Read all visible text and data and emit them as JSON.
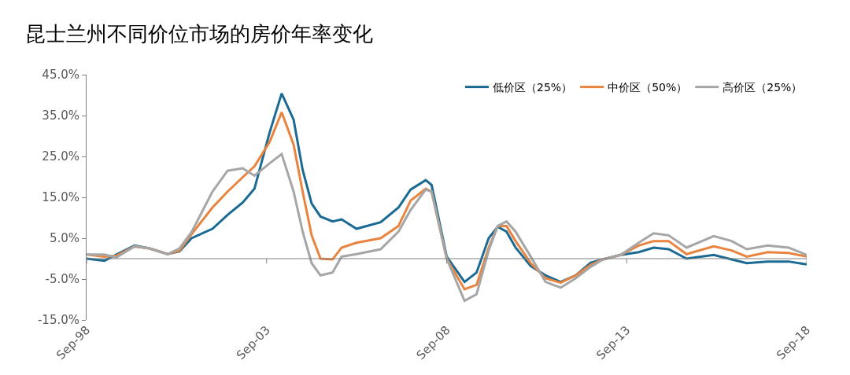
{
  "chart_data": {
    "type": "line",
    "title": "昆士兰州不同价位市场的房价年率变化",
    "x": [
      "1998-09",
      "1999-03",
      "1999-07",
      "2000-01",
      "2000-06",
      "2000-12",
      "2001-04",
      "2001-08",
      "2002-03",
      "2002-08",
      "2003-01",
      "2003-05",
      "2003-10",
      "2004-02",
      "2004-06",
      "2004-09",
      "2004-12",
      "2005-03",
      "2005-07",
      "2005-10",
      "2006-03",
      "2006-11",
      "2007-05",
      "2007-09",
      "2008-02",
      "2008-04",
      "2008-09",
      "2009-03",
      "2009-07",
      "2009-11",
      "2010-02",
      "2010-05",
      "2010-08",
      "2011-01",
      "2011-06",
      "2011-11",
      "2012-04",
      "2012-09",
      "2013-01",
      "2013-07",
      "2014-01",
      "2014-06",
      "2014-11",
      "2015-05",
      "2016-02",
      "2016-08",
      "2017-01",
      "2017-08",
      "2018-03",
      "2018-09"
    ],
    "series": [
      {
        "name": "低价区（25%）",
        "color": "#1b6a94",
        "values": [
          0,
          -0.5,
          1,
          3.2,
          2.5,
          1.1,
          1.8,
          5,
          7.3,
          10.7,
          13.7,
          17.1,
          30.8,
          40.4,
          34,
          21.7,
          13.5,
          10.3,
          9.1,
          9.6,
          7.3,
          8.9,
          12.5,
          16.9,
          19.2,
          18,
          0.5,
          -5.7,
          -3.4,
          5,
          7.8,
          6.6,
          2.7,
          -1.8,
          -4.1,
          -5.7,
          -4.1,
          -1,
          -0.2,
          0.9,
          1.6,
          2.7,
          2.3,
          0,
          0.9,
          -0.2,
          -1.1,
          -0.7,
          -0.7,
          -1.4
        ]
      },
      {
        "name": "中价区（50%）",
        "color": "#e8843f",
        "values": [
          1,
          0.5,
          0.7,
          3,
          2.5,
          1.1,
          2,
          6,
          12.5,
          16.4,
          19.9,
          22.6,
          28.5,
          35.8,
          27.9,
          16.4,
          5.7,
          0,
          -0.2,
          2.7,
          3.9,
          5,
          8,
          14.2,
          17.1,
          16.4,
          0,
          -7.5,
          -6.4,
          2.7,
          8,
          8,
          4.3,
          -1.1,
          -4.8,
          -5.9,
          -4.1,
          -1.5,
          -0.2,
          0.9,
          3.2,
          4.3,
          4.3,
          1.1,
          3,
          2,
          0.5,
          1.6,
          1.4,
          0.5
        ]
      },
      {
        "name": "高价区（25%）",
        "color": "#a6a6a6",
        "values": [
          1,
          1,
          0.3,
          3,
          2.5,
          1.1,
          2.5,
          6.5,
          16.4,
          21.5,
          22.1,
          20.3,
          23.3,
          25.6,
          16.4,
          6.6,
          -1.1,
          -4.1,
          -3.4,
          0.5,
          1.1,
          2.3,
          6.6,
          11.9,
          16.9,
          16.4,
          0,
          -10.3,
          -8.7,
          2,
          8,
          9.1,
          6.6,
          0.5,
          -5.7,
          -7.1,
          -4.8,
          -2,
          -0.2,
          0.9,
          3.9,
          6.2,
          5.7,
          2.7,
          5.5,
          4.3,
          2.3,
          3.2,
          2.7,
          0.9
        ]
      }
    ],
    "xlim": [
      "1998-09",
      "2018-09"
    ],
    "xticks": [
      {
        "value": "1998-09",
        "label": "Sep-98"
      },
      {
        "value": "2003-09",
        "label": "Sep-03"
      },
      {
        "value": "2008-09",
        "label": "Sep-08"
      },
      {
        "value": "2013-09",
        "label": "Sep-13"
      },
      {
        "value": "2018-09",
        "label": "Sep-18"
      }
    ],
    "ylim": [
      -15,
      45
    ],
    "yticks": [
      {
        "value": -15,
        "label": "-15.0%"
      },
      {
        "value": -5,
        "label": "-5.0%"
      },
      {
        "value": 5,
        "label": "5.0%"
      },
      {
        "value": 15,
        "label": "15.0%"
      },
      {
        "value": 25,
        "label": "25.0%"
      },
      {
        "value": 35,
        "label": "35.0%"
      },
      {
        "value": 45,
        "label": "45.0%"
      }
    ],
    "ref_lines": [
      {
        "axis": "y",
        "value": 0,
        "color": "#808080"
      }
    ],
    "grid": false,
    "legend": "top right",
    "marker": "none",
    "line_style": "solid"
  }
}
